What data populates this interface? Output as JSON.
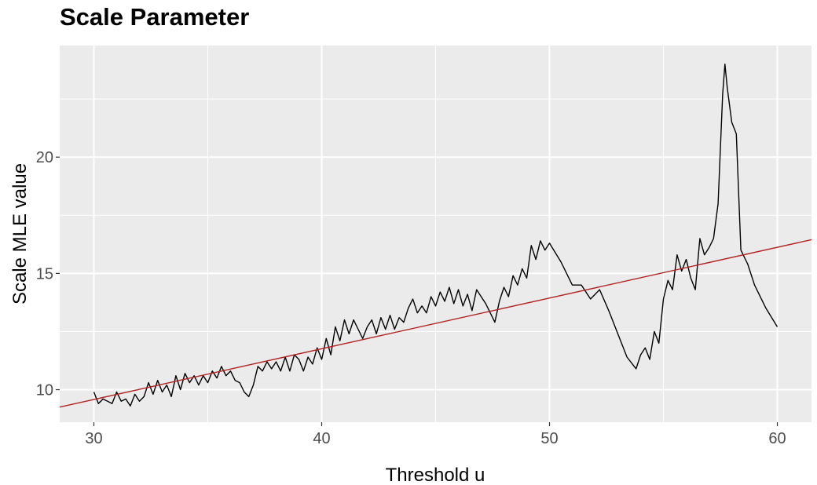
{
  "chart_data": {
    "type": "line",
    "title": "Scale Parameter",
    "xlabel": "Threshold u",
    "ylabel": "Scale MLE value",
    "xlim": [
      28.5,
      61.5
    ],
    "ylim": [
      8.6,
      24.8
    ],
    "x_ticks": [
      30,
      40,
      50,
      60
    ],
    "y_ticks": [
      10,
      15,
      20
    ],
    "x_minor_ticks": [
      35,
      45,
      55
    ],
    "y_minor_ticks": [
      12.5,
      17.5,
      22.5
    ],
    "grid": true,
    "colors": {
      "panel_background": "#EBEBEB",
      "grid": "#FFFFFF",
      "series_line": "#000000",
      "trend_line": "#B22222"
    },
    "series": [
      {
        "x": [
          30.0,
          30.2,
          30.4,
          30.6,
          30.8,
          31.0,
          31.2,
          31.4,
          31.6,
          31.8,
          32.0,
          32.2,
          32.4,
          32.6,
          32.8,
          33.0,
          33.2,
          33.4,
          33.6,
          33.8,
          34.0,
          34.2,
          34.4,
          34.6,
          34.8,
          35.0,
          35.2,
          35.4,
          35.6,
          35.8,
          36.0,
          36.2,
          36.4,
          36.6,
          36.8,
          37.0,
          37.2,
          37.4,
          37.6,
          37.8,
          38.0,
          38.2,
          38.4,
          38.6,
          38.8,
          39.0,
          39.2,
          39.4,
          39.6,
          39.8,
          40.0,
          40.2,
          40.4,
          40.6,
          40.8,
          41.0,
          41.2,
          41.4,
          41.6,
          41.8,
          42.0,
          42.2,
          42.4,
          42.6,
          42.8,
          43.0,
          43.2,
          43.4,
          43.6,
          43.8,
          44.0,
          44.2,
          44.4,
          44.6,
          44.8,
          45.0,
          45.2,
          45.4,
          45.6,
          45.8,
          46.0,
          46.2,
          46.4,
          46.6,
          46.8,
          47.0,
          47.2,
          47.4,
          47.6,
          47.8,
          48.0,
          48.2,
          48.4,
          48.6,
          48.8,
          49.0,
          49.2,
          49.4,
          49.6,
          49.8,
          50.0,
          50.5,
          51.0,
          51.4,
          51.8,
          52.2,
          52.6,
          53.0,
          53.4,
          53.8,
          54.0,
          54.2,
          54.4,
          54.6,
          54.8,
          55.0,
          55.2,
          55.4,
          55.6,
          55.8,
          56.0,
          56.2,
          56.4,
          56.6,
          56.8,
          57.0,
          57.2,
          57.4,
          57.6,
          57.7,
          57.8,
          58.0,
          58.2,
          58.4,
          58.7,
          59.0,
          59.5,
          60.0
        ],
        "y": [
          9.9,
          9.4,
          9.6,
          9.5,
          9.4,
          9.9,
          9.5,
          9.6,
          9.3,
          9.8,
          9.5,
          9.7,
          10.3,
          9.8,
          10.4,
          9.9,
          10.2,
          9.7,
          10.6,
          10.0,
          10.7,
          10.3,
          10.6,
          10.2,
          10.6,
          10.3,
          10.8,
          10.5,
          11.0,
          10.6,
          10.8,
          10.4,
          10.3,
          9.9,
          9.7,
          10.2,
          11.0,
          10.8,
          11.2,
          10.9,
          11.2,
          10.8,
          11.4,
          10.8,
          11.5,
          11.3,
          10.8,
          11.4,
          11.1,
          11.8,
          11.3,
          12.2,
          11.5,
          12.7,
          12.1,
          13.0,
          12.4,
          13.0,
          12.6,
          12.2,
          12.7,
          13.0,
          12.4,
          13.1,
          12.6,
          13.2,
          12.6,
          13.1,
          12.9,
          13.5,
          13.9,
          13.3,
          13.6,
          13.3,
          14.0,
          13.6,
          14.2,
          13.8,
          14.4,
          13.7,
          14.3,
          13.6,
          14.1,
          13.4,
          14.3,
          14.0,
          13.7,
          13.3,
          12.9,
          13.8,
          14.4,
          14.0,
          14.9,
          14.5,
          15.2,
          14.8,
          16.2,
          15.6,
          16.4,
          16.0,
          16.3,
          15.5,
          14.5,
          14.5,
          13.9,
          14.3,
          13.4,
          12.4,
          11.4,
          10.9,
          11.5,
          11.8,
          11.3,
          12.5,
          12.0,
          13.9,
          14.7,
          14.3,
          15.8,
          15.1,
          15.6,
          14.8,
          14.3,
          16.5,
          15.8,
          16.1,
          16.5,
          18.0,
          22.7,
          24.0,
          23.0,
          21.5,
          21.0,
          16.0,
          15.4,
          14.5,
          13.5,
          12.7
        ]
      }
    ],
    "trend_line": {
      "x": [
        28.5,
        61.5
      ],
      "y": [
        9.25,
        16.45
      ]
    }
  }
}
